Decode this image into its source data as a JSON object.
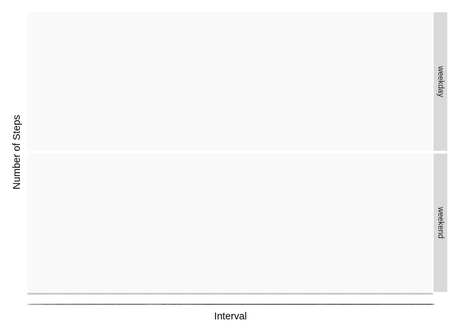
{
  "chart_data": {
    "type": "line",
    "xlabel": "Interval",
    "ylabel": "Number of Steps",
    "facets": [
      "weekday",
      "weekend"
    ],
    "x_is_categorical": true,
    "num_intervals": 288,
    "x_first": 0,
    "x_step_minutes": 5,
    "series": [],
    "grid": true,
    "legend": "none"
  },
  "colors": {
    "panel_bg": "#ffffff",
    "gridline": "#ebebeb",
    "strip_bg": "#d9d9d9",
    "tick": "#333333",
    "tick_label": "#4d4d4d"
  }
}
